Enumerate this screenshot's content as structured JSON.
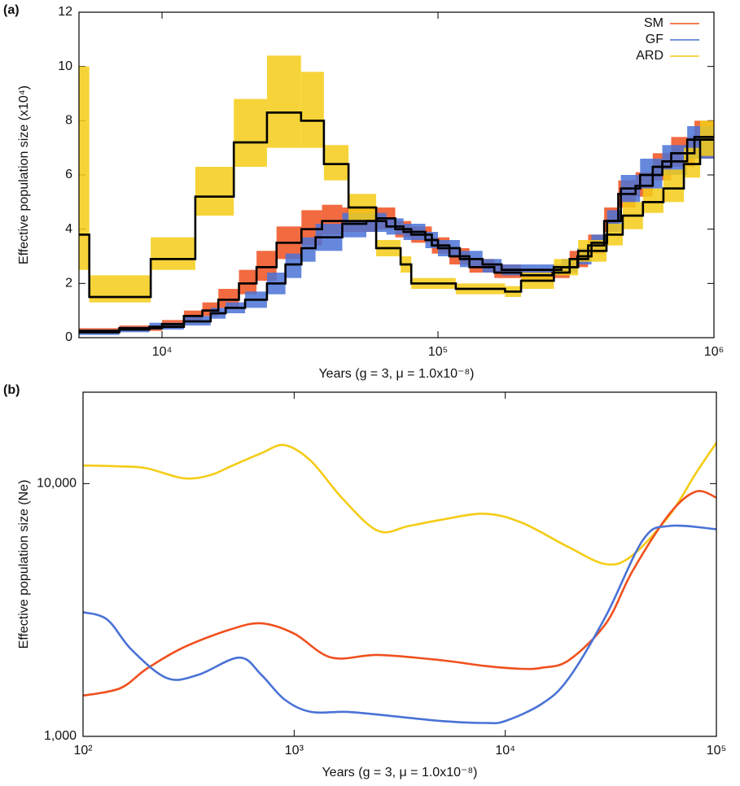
{
  "chart_data": [
    {
      "type": "step",
      "panel_label": "(a)",
      "x_label": "Years (g = 3, μ = 1.0x10⁻⁸)",
      "y_label": "Effective population size (x10⁴)",
      "log_x": true,
      "xlim": [
        5000,
        1000000
      ],
      "xticks": [
        {
          "value": 10000,
          "label": "10⁴"
        },
        {
          "value": 100000,
          "label": "10⁵"
        },
        {
          "value": 1000000,
          "label": "10⁶"
        }
      ],
      "ylim": [
        0,
        12
      ],
      "yticks": [
        0,
        2,
        4,
        6,
        8,
        10,
        12
      ],
      "legend": "upper right",
      "estimate_color": "#000000",
      "series": [
        {
          "name": "SM",
          "color": "#f0501e",
          "x": [
            5000,
            7000,
            10000,
            12000,
            14000,
            16000,
            19000,
            22000,
            26000,
            32000,
            38000,
            45000,
            60000,
            70000,
            80000,
            95000,
            110000,
            130000,
            160000,
            200000,
            260000,
            300000,
            350000,
            400000,
            450000,
            520000,
            600000,
            700000,
            850000
          ],
          "values": [
            0.25,
            0.35,
            0.5,
            0.8,
            1.0,
            1.4,
            2.0,
            2.6,
            3.5,
            4.0,
            4.3,
            4.3,
            4.4,
            4.0,
            3.8,
            3.4,
            3.0,
            2.6,
            2.4,
            2.3,
            2.4,
            2.9,
            3.4,
            4.3,
            5.3,
            5.6,
            6.3,
            6.8,
            7.4
          ],
          "lower": [
            0.15,
            0.25,
            0.35,
            0.6,
            0.8,
            1.1,
            1.6,
            2.1,
            2.9,
            3.4,
            3.8,
            3.9,
            4.0,
            3.7,
            3.5,
            3.1,
            2.7,
            2.4,
            2.2,
            2.1,
            2.2,
            2.6,
            3.1,
            3.9,
            4.8,
            5.2,
            5.8,
            6.3,
            6.6
          ],
          "upper": [
            0.35,
            0.45,
            0.65,
            1.0,
            1.3,
            1.8,
            2.5,
            3.2,
            4.1,
            4.7,
            4.9,
            4.8,
            4.8,
            4.3,
            4.1,
            3.7,
            3.3,
            2.9,
            2.7,
            2.5,
            2.7,
            3.2,
            3.8,
            4.8,
            5.8,
            6.1,
            6.8,
            7.4,
            8.0
          ]
        },
        {
          "name": "GF",
          "color": "#4a72d6",
          "x": [
            5000,
            7000,
            9000,
            12000,
            15000,
            17000,
            20000,
            24000,
            28000,
            32000,
            36000,
            45000,
            55000,
            65000,
            75000,
            90000,
            100000,
            120000,
            145000,
            170000,
            230000,
            280000,
            320000,
            360000,
            410000,
            460000,
            540000,
            650000,
            800000
          ],
          "values": [
            0.2,
            0.3,
            0.4,
            0.6,
            0.9,
            1.1,
            1.4,
            2.0,
            2.7,
            3.3,
            3.7,
            4.2,
            4.3,
            4.1,
            3.9,
            3.6,
            3.3,
            2.9,
            2.7,
            2.5,
            2.5,
            2.6,
            3.0,
            3.5,
            4.3,
            5.5,
            6.0,
            6.5,
            7.3
          ],
          "lower": [
            0.1,
            0.2,
            0.3,
            0.45,
            0.7,
            0.9,
            1.1,
            1.6,
            2.2,
            2.8,
            3.2,
            3.7,
            3.9,
            3.8,
            3.6,
            3.3,
            3.0,
            2.6,
            2.4,
            2.3,
            2.3,
            2.4,
            2.7,
            3.2,
            3.9,
            5.0,
            5.5,
            6.0,
            6.6
          ],
          "upper": [
            0.3,
            0.4,
            0.55,
            0.8,
            1.1,
            1.3,
            1.7,
            2.4,
            3.1,
            3.7,
            4.2,
            4.6,
            4.6,
            4.4,
            4.2,
            3.9,
            3.6,
            3.2,
            2.9,
            2.7,
            2.7,
            2.9,
            3.3,
            3.8,
            4.7,
            6.0,
            6.6,
            7.1,
            7.8
          ]
        },
        {
          "name": "ARD",
          "color": "#f5cc16",
          "x": [
            5000,
            5450,
            9100,
            13200,
            18200,
            24000,
            31900,
            38600,
            47400,
            59700,
            73200,
            80000,
            116000,
            175000,
            200000,
            263000,
            322000,
            408000,
            467000,
            553000,
            656000,
            778000,
            891000
          ],
          "values": [
            3.8,
            1.5,
            2.9,
            5.2,
            7.2,
            8.3,
            8.0,
            6.4,
            4.8,
            3.3,
            2.7,
            2.0,
            1.8,
            1.7,
            2.1,
            2.6,
            3.2,
            3.8,
            4.5,
            5.0,
            5.5,
            6.4,
            7.3
          ],
          "lower": [
            2.5,
            1.3,
            2.5,
            4.5,
            6.3,
            7.0,
            7.0,
            5.8,
            4.3,
            3.0,
            2.4,
            1.8,
            1.6,
            1.5,
            1.8,
            2.3,
            2.8,
            3.4,
            4.0,
            4.6,
            5.0,
            5.9,
            6.7
          ],
          "upper": [
            10.0,
            2.3,
            3.7,
            6.3,
            8.8,
            10.4,
            9.8,
            7.1,
            5.3,
            3.6,
            3.0,
            2.2,
            2.0,
            1.9,
            2.4,
            2.9,
            3.6,
            4.2,
            5.0,
            5.5,
            6.2,
            7.0,
            8.0
          ]
        }
      ]
    },
    {
      "type": "line",
      "panel_label": "(b)",
      "x_label": "Years (g = 3, μ = 1.0x10⁻⁸)",
      "y_label": "Effective population size (Ne)",
      "log_x": true,
      "log_y": true,
      "xlim": [
        100,
        100000
      ],
      "xticks": [
        {
          "value": 100,
          "label": "10²"
        },
        {
          "value": 1000,
          "label": "10³"
        },
        {
          "value": 10000,
          "label": "10⁴"
        },
        {
          "value": 100000,
          "label": "10⁵"
        }
      ],
      "ylim": [
        1000,
        23000
      ],
      "yticks": [
        {
          "value": 1000,
          "label": "1,000"
        },
        {
          "value": 10000,
          "label": "10,000"
        }
      ],
      "series": [
        {
          "name": "ARD",
          "color": "#f5cc16",
          "x": [
            100,
            150,
            200,
            300,
            400,
            500,
            700,
            900,
            1200,
            1700,
            2500,
            3500,
            5000,
            8000,
            12000,
            20000,
            30000,
            40000,
            60000,
            80000,
            100000
          ],
          "values": [
            11800,
            11700,
            11500,
            10500,
            10800,
            11700,
            13200,
            14200,
            12300,
            8700,
            6500,
            6800,
            7200,
            7600,
            7000,
            5600,
            4800,
            5200,
            7500,
            11000,
            14500
          ]
        },
        {
          "name": "SM",
          "color": "#f0501e",
          "x": [
            100,
            150,
            200,
            300,
            500,
            700,
            1000,
            1500,
            2500,
            5000,
            8000,
            12000,
            15000,
            20000,
            30000,
            40000,
            60000,
            80000,
            100000
          ],
          "values": [
            1450,
            1550,
            1850,
            2250,
            2650,
            2800,
            2550,
            2050,
            2100,
            2000,
            1900,
            1850,
            1870,
            2000,
            2800,
            4500,
            7600,
            9300,
            8800
          ]
        },
        {
          "name": "GF",
          "color": "#4a72d6",
          "x": [
            100,
            130,
            170,
            250,
            350,
            550,
            700,
            900,
            1200,
            1800,
            3000,
            5000,
            8000,
            10000,
            15000,
            20000,
            30000,
            45000,
            60000,
            100000
          ],
          "values": [
            3100,
            2900,
            2200,
            1700,
            1750,
            2050,
            1750,
            1400,
            1250,
            1250,
            1200,
            1150,
            1130,
            1150,
            1350,
            1700,
            3000,
            6000,
            6800,
            6600
          ]
        }
      ]
    }
  ]
}
